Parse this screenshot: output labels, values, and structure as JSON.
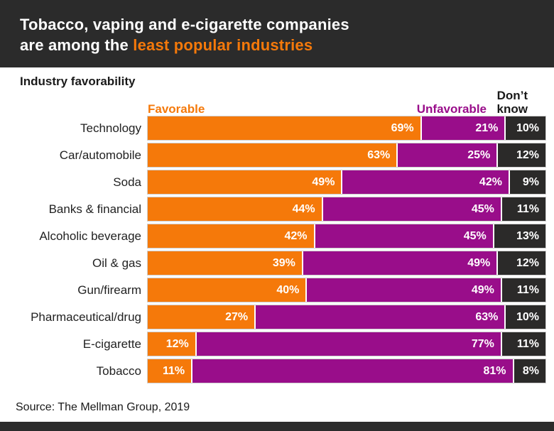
{
  "header": {
    "title_line1": "Tobacco, vaping and e-cigarette companies",
    "title_line2_prefix": "are among the ",
    "title_line2_highlight": "least popular industries",
    "bg_color": "#2B2B2B",
    "highlight_color": "#F5790A"
  },
  "subtitle": "Industry favorability",
  "source": "Source: The Mellman Group, 2019",
  "colors": {
    "favorable": "#F5790A",
    "unfavorable": "#990D8A",
    "dont_know": "#2B2A29",
    "header_bg": "#2B2B2B",
    "bar_outline": "#cfcfcf"
  },
  "chart_data": {
    "type": "bar",
    "orientation": "horizontal",
    "stacked": true,
    "unit": "%",
    "xlim": [
      0,
      100
    ],
    "value_labels": "inside-right",
    "legend_position": "top",
    "title": "Industry favorability",
    "categories": [
      "Technology",
      "Car/automobile",
      "Soda",
      "Banks & financial",
      "Alcoholic beverage",
      "Oil & gas",
      "Gun/firearm",
      "Pharmaceutical/drug",
      "E-cigarette",
      "Tobacco"
    ],
    "series": [
      {
        "name": "Favorable",
        "color": "#F5790A",
        "values": [
          69,
          63,
          49,
          44,
          42,
          39,
          40,
          27,
          12,
          11
        ]
      },
      {
        "name": "Unfavorable",
        "color": "#990D8A",
        "values": [
          21,
          25,
          42,
          45,
          45,
          49,
          49,
          63,
          77,
          81
        ]
      },
      {
        "name": "Don’t know",
        "color": "#2B2A29",
        "values": [
          10,
          12,
          9,
          11,
          13,
          12,
          11,
          10,
          11,
          8
        ]
      }
    ]
  }
}
